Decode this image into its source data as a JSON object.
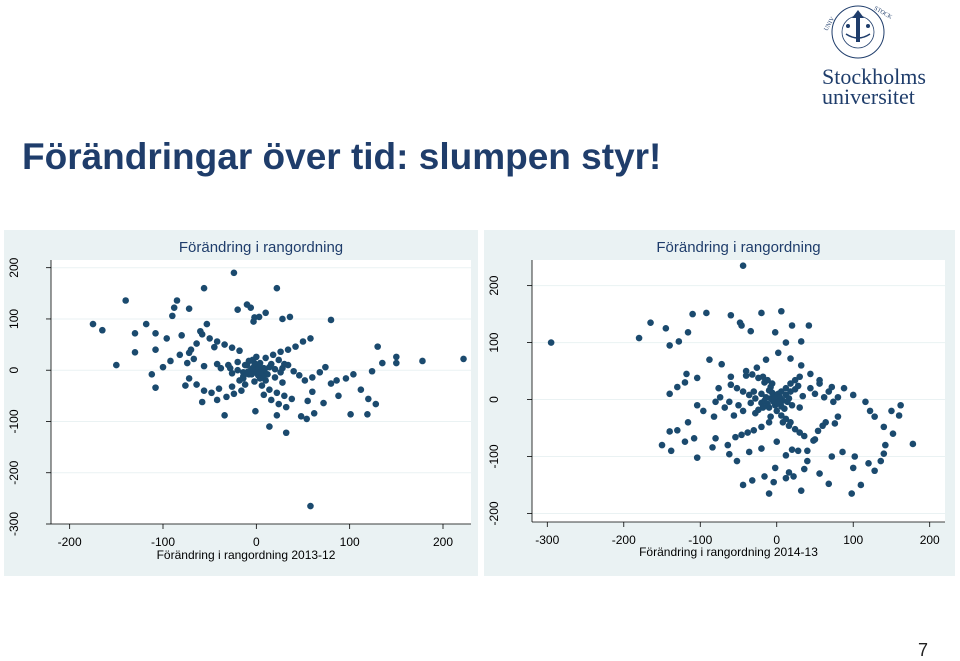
{
  "slide": {
    "title": "Förändringar över tid: slumpen styr!",
    "page_number": "7"
  },
  "logo": {
    "line1": "Stockholms",
    "line2": "universitet",
    "seal_text": "STOCKHOLMS UNIVERSITET",
    "color": "#1f3d6b"
  },
  "colors": {
    "marker": "#1b4a6e",
    "panel_bg": "#eaf2f3",
    "title": "#1f3d6b"
  },
  "chart_data": [
    {
      "type": "scatter",
      "title": "Förändring i rangordning",
      "xlabel": "Förändring i rangordning 2013-12",
      "ylabel": "",
      "xlim": [
        -220,
        230
      ],
      "ylim": [
        -300,
        215
      ],
      "xticks": [
        -200,
        -100,
        0,
        100,
        200
      ],
      "yticks": [
        -300,
        -200,
        -100,
        0,
        100,
        200
      ],
      "grid": true,
      "points": [
        [
          -175,
          90
        ],
        [
          -165,
          78
        ],
        [
          -140,
          136
        ],
        [
          -118,
          90
        ],
        [
          -130,
          72
        ],
        [
          -108,
          72
        ],
        [
          -96,
          62
        ],
        [
          -130,
          35
        ],
        [
          -150,
          10
        ],
        [
          -108,
          40
        ],
        [
          -72,
          120
        ],
        [
          -85,
          136
        ],
        [
          -90,
          106
        ],
        [
          -88,
          122
        ],
        [
          -56,
          160
        ],
        [
          -53,
          90
        ],
        [
          -24,
          190
        ],
        [
          -6,
          122
        ],
        [
          -10,
          128
        ],
        [
          -2,
          103
        ],
        [
          3,
          104
        ],
        [
          -3,
          95
        ],
        [
          22,
          160
        ],
        [
          36,
          104
        ],
        [
          -20,
          118
        ],
        [
          10,
          112
        ],
        [
          28,
          100
        ],
        [
          80,
          98
        ],
        [
          -67,
          22
        ],
        [
          -45,
          45
        ],
        [
          -60,
          76
        ],
        [
          -80,
          68
        ],
        [
          -72,
          34
        ],
        [
          -112,
          -8
        ],
        [
          -76,
          -30
        ],
        [
          -58,
          -62
        ],
        [
          -42,
          -58
        ],
        [
          -14,
          -16
        ],
        [
          -12,
          -28
        ],
        [
          -1,
          -80
        ],
        [
          28,
          -24
        ],
        [
          60,
          -42
        ],
        [
          22,
          -88
        ],
        [
          -34,
          -88
        ],
        [
          14,
          -110
        ],
        [
          32,
          -122
        ],
        [
          55,
          -60
        ],
        [
          48,
          -90
        ],
        [
          88,
          -50
        ],
        [
          112,
          -38
        ],
        [
          119,
          -86
        ],
        [
          128,
          -66
        ],
        [
          150,
          26
        ],
        [
          178,
          18
        ],
        [
          222,
          22
        ],
        [
          130,
          46
        ],
        [
          124,
          -2
        ],
        [
          120,
          -56
        ],
        [
          135,
          14
        ],
        [
          150,
          14
        ],
        [
          101,
          -86
        ],
        [
          54,
          -95
        ],
        [
          62,
          -84
        ],
        [
          72,
          -64
        ],
        [
          -26,
          -32
        ],
        [
          -8,
          -8
        ],
        [
          58,
          -265
        ],
        [
          -108,
          -34
        ],
        [
          -74,
          14
        ],
        [
          -56,
          8
        ],
        [
          -42,
          12
        ],
        [
          -38,
          4
        ],
        [
          -28,
          4
        ],
        [
          -20,
          0
        ],
        [
          -14,
          -4
        ],
        [
          -6,
          -6
        ],
        [
          2,
          -2
        ],
        [
          8,
          4
        ],
        [
          14,
          6
        ],
        [
          20,
          2
        ],
        [
          28,
          4
        ],
        [
          34,
          10
        ],
        [
          40,
          -2
        ],
        [
          46,
          -10
        ],
        [
          52,
          -20
        ],
        [
          60,
          -14
        ],
        [
          68,
          -4
        ],
        [
          74,
          6
        ],
        [
          80,
          -26
        ],
        [
          86,
          -20
        ],
        [
          96,
          -16
        ],
        [
          104,
          -8
        ],
        [
          -10,
          10
        ],
        [
          -4,
          20
        ],
        [
          4,
          14
        ],
        [
          10,
          24
        ],
        [
          18,
          30
        ],
        [
          26,
          36
        ],
        [
          34,
          40
        ],
        [
          42,
          46
        ],
        [
          50,
          56
        ],
        [
          58,
          62
        ],
        [
          -18,
          38
        ],
        [
          -26,
          44
        ],
        [
          -34,
          50
        ],
        [
          -42,
          56
        ],
        [
          -50,
          62
        ],
        [
          -58,
          70
        ],
        [
          -64,
          52
        ],
        [
          -70,
          40
        ],
        [
          -82,
          30
        ],
        [
          -92,
          18
        ],
        [
          -100,
          6
        ],
        [
          -2,
          -22
        ],
        [
          6,
          -30
        ],
        [
          14,
          -38
        ],
        [
          22,
          -44
        ],
        [
          30,
          -50
        ],
        [
          38,
          -56
        ],
        [
          -16,
          -40
        ],
        [
          -24,
          -46
        ],
        [
          -32,
          -52
        ],
        [
          -40,
          -36
        ],
        [
          -48,
          -44
        ],
        [
          -56,
          -40
        ],
        [
          -64,
          -28
        ],
        [
          -72,
          -16
        ],
        [
          8,
          -48
        ],
        [
          16,
          -58
        ],
        [
          24,
          -66
        ],
        [
          32,
          -72
        ],
        [
          -6,
          0
        ],
        [
          -3,
          5
        ],
        [
          0,
          -5
        ],
        [
          3,
          8
        ],
        [
          6,
          -3
        ],
        [
          9,
          2
        ],
        [
          -9,
          -3
        ],
        [
          -5,
          -8
        ],
        [
          2,
          -10
        ],
        [
          7,
          -12
        ],
        [
          -12,
          10
        ],
        [
          12,
          -8
        ],
        [
          -2,
          14
        ],
        [
          4,
          -16
        ],
        [
          -14,
          -12
        ],
        [
          16,
          12
        ],
        [
          -8,
          18
        ],
        [
          10,
          -20
        ],
        [
          0,
          26
        ],
        [
          -18,
          -20
        ],
        [
          -20,
          16
        ],
        [
          20,
          -14
        ],
        [
          24,
          20
        ],
        [
          -26,
          -6
        ],
        [
          26,
          -4
        ],
        [
          -30,
          10
        ],
        [
          30,
          12
        ],
        [
          0,
          0
        ],
        [
          -4,
          4
        ],
        [
          4,
          -4
        ]
      ]
    },
    {
      "type": "scatter",
      "title": "Förändring i rangordning",
      "xlabel": "Förändring i rangordning 2014-13",
      "ylabel": "",
      "xlim": [
        -320,
        220
      ],
      "ylim": [
        -215,
        245
      ],
      "xticks": [
        -300,
        -200,
        -100,
        0,
        100,
        200
      ],
      "yticks": [
        -200,
        -100,
        0,
        100,
        200
      ],
      "grid": true,
      "points": [
        [
          -295,
          100
        ],
        [
          -180,
          108
        ],
        [
          -165,
          135
        ],
        [
          -145,
          125
        ],
        [
          -110,
          150
        ],
        [
          -92,
          152
        ],
        [
          -60,
          148
        ],
        [
          -48,
          135
        ],
        [
          -46,
          130
        ],
        [
          -20,
          152
        ],
        [
          6,
          155
        ],
        [
          -2,
          118
        ],
        [
          20,
          130
        ],
        [
          -34,
          120
        ],
        [
          12,
          100
        ],
        [
          32,
          102
        ],
        [
          42,
          130
        ],
        [
          -44,
          235
        ],
        [
          -128,
          102
        ],
        [
          -116,
          118
        ],
        [
          -140,
          95
        ],
        [
          -88,
          70
        ],
        [
          -72,
          62
        ],
        [
          -118,
          45
        ],
        [
          -104,
          38
        ],
        [
          -120,
          30
        ],
        [
          -130,
          22
        ],
        [
          -140,
          10
        ],
        [
          -76,
          20
        ],
        [
          -60,
          40
        ],
        [
          -40,
          42
        ],
        [
          -26,
          56
        ],
        [
          -14,
          70
        ],
        [
          2,
          82
        ],
        [
          18,
          72
        ],
        [
          32,
          60
        ],
        [
          44,
          45
        ],
        [
          56,
          34
        ],
        [
          72,
          22
        ],
        [
          88,
          20
        ],
        [
          100,
          8
        ],
        [
          116,
          -4
        ],
        [
          122,
          -20
        ],
        [
          128,
          -30
        ],
        [
          140,
          -48
        ],
        [
          80,
          -30
        ],
        [
          76,
          -42
        ],
        [
          60,
          -46
        ],
        [
          48,
          -72
        ],
        [
          40,
          -90
        ],
        [
          20,
          -88
        ],
        [
          0,
          -74
        ],
        [
          -20,
          -86
        ],
        [
          -36,
          -92
        ],
        [
          -62,
          -96
        ],
        [
          -84,
          -84
        ],
        [
          -104,
          -102
        ],
        [
          -120,
          -74
        ],
        [
          -130,
          -54
        ],
        [
          -116,
          -40
        ],
        [
          -140,
          -56
        ],
        [
          -96,
          -20
        ],
        [
          -104,
          -10
        ],
        [
          -82,
          -30
        ],
        [
          178,
          -78
        ],
        [
          140,
          -95
        ],
        [
          100,
          -120
        ],
        [
          128,
          -125
        ],
        [
          110,
          -150
        ],
        [
          98,
          -165
        ],
        [
          68,
          -148
        ],
        [
          56,
          -130
        ],
        [
          40,
          -108
        ],
        [
          28,
          -90
        ],
        [
          12,
          -98
        ],
        [
          -2,
          -120
        ],
        [
          12,
          -138
        ],
        [
          22,
          -135
        ],
        [
          -16,
          -135
        ],
        [
          -32,
          -142
        ],
        [
          -52,
          -108
        ],
        [
          -64,
          -80
        ],
        [
          -80,
          -68
        ],
        [
          -108,
          -68
        ],
        [
          -138,
          -90
        ],
        [
          -150,
          -80
        ],
        [
          72,
          -100
        ],
        [
          86,
          -92
        ],
        [
          120,
          -112
        ],
        [
          136,
          -108
        ],
        [
          102,
          -100
        ],
        [
          142,
          -80
        ],
        [
          152,
          -60
        ],
        [
          160,
          -28
        ],
        [
          162,
          -10
        ],
        [
          150,
          -20
        ],
        [
          -44,
          -150
        ],
        [
          -10,
          -165
        ],
        [
          -4,
          -145
        ],
        [
          16,
          -128
        ],
        [
          36,
          -122
        ],
        [
          32,
          -160
        ],
        [
          50,
          -70
        ],
        [
          54,
          -55
        ],
        [
          64,
          -40
        ],
        [
          -8,
          -30
        ],
        [
          0,
          -20
        ],
        [
          -10,
          -14
        ],
        [
          -20,
          -6
        ],
        [
          -28,
          2
        ],
        [
          -36,
          8
        ],
        [
          -44,
          14
        ],
        [
          -52,
          20
        ],
        [
          -60,
          26
        ],
        [
          -10,
          -40
        ],
        [
          -20,
          -48
        ],
        [
          -30,
          -54
        ],
        [
          -38,
          -58
        ],
        [
          -46,
          -62
        ],
        [
          -54,
          -66
        ],
        [
          8,
          -40
        ],
        [
          16,
          -46
        ],
        [
          24,
          -52
        ],
        [
          30,
          -58
        ],
        [
          36,
          -64
        ],
        [
          -2,
          8
        ],
        [
          6,
          14
        ],
        [
          12,
          20
        ],
        [
          18,
          28
        ],
        [
          24,
          34
        ],
        [
          30,
          40
        ],
        [
          -8,
          22
        ],
        [
          -16,
          30
        ],
        [
          -24,
          38
        ],
        [
          -32,
          44
        ],
        [
          -40,
          50
        ],
        [
          0,
          0
        ],
        [
          -4,
          -4
        ],
        [
          4,
          4
        ],
        [
          -8,
          2
        ],
        [
          8,
          -2
        ],
        [
          -2,
          -10
        ],
        [
          2,
          10
        ],
        [
          -12,
          -8
        ],
        [
          12,
          8
        ],
        [
          -6,
          12
        ],
        [
          6,
          -12
        ],
        [
          -14,
          4
        ],
        [
          14,
          -4
        ],
        [
          -10,
          16
        ],
        [
          10,
          -16
        ],
        [
          -18,
          -14
        ],
        [
          18,
          14
        ],
        [
          0,
          -6
        ],
        [
          0,
          6
        ],
        [
          -6,
          0
        ],
        [
          6,
          0
        ],
        [
          -3,
          -3
        ],
        [
          3,
          3
        ],
        [
          -3,
          3
        ],
        [
          3,
          -3
        ],
        [
          -16,
          -2
        ],
        [
          16,
          2
        ],
        [
          -20,
          10
        ],
        [
          20,
          -10
        ],
        [
          -24,
          -18
        ],
        [
          24,
          18
        ],
        [
          -28,
          -24
        ],
        [
          28,
          24
        ],
        [
          -30,
          14
        ],
        [
          30,
          -14
        ],
        [
          -34,
          -6
        ],
        [
          34,
          6
        ],
        [
          -44,
          -20
        ],
        [
          44,
          20
        ],
        [
          -50,
          -10
        ],
        [
          50,
          10
        ],
        [
          -56,
          -28
        ],
        [
          56,
          28
        ],
        [
          -62,
          -4
        ],
        [
          62,
          4
        ],
        [
          -68,
          -14
        ],
        [
          68,
          14
        ],
        [
          -74,
          4
        ],
        [
          74,
          -4
        ],
        [
          -80,
          -4
        ],
        [
          80,
          4
        ],
        [
          -6,
          28
        ],
        [
          6,
          -28
        ],
        [
          -12,
          34
        ],
        [
          12,
          -34
        ],
        [
          -18,
          40
        ],
        [
          18,
          -40
        ]
      ]
    }
  ]
}
